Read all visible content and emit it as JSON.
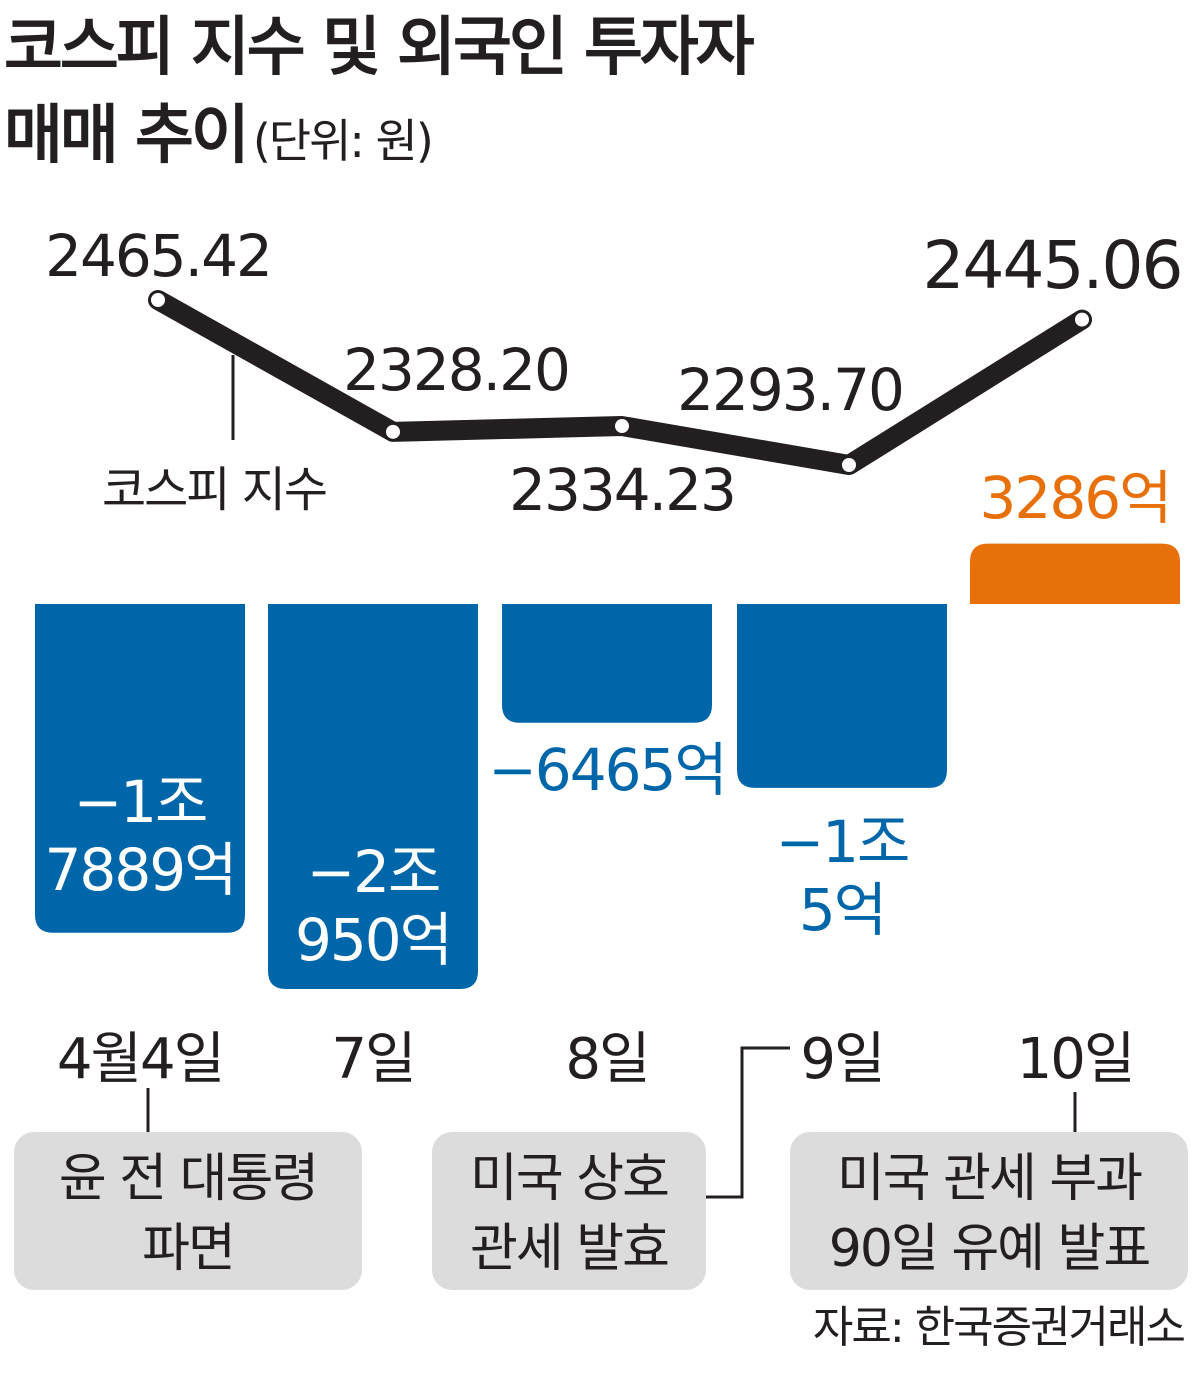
{
  "title_line1": "코스피 지수 및 외국인 투자자",
  "title_line2": "매매 추이",
  "unit_label": "(단위: 원)",
  "source": "자료: 한국증권거래소",
  "colors": {
    "index_line": "#231f20",
    "net_sell": "#0066aa",
    "net_buy": "#e8700a",
    "event_box": "#dcdcdc",
    "text": "#231f20"
  },
  "chart_data": {
    "type": "bar",
    "categories": [
      "4월4일",
      "7일",
      "8일",
      "9일",
      "10일"
    ],
    "series": [
      {
        "name": "코스피 지수",
        "type": "line",
        "values": [
          2465.42,
          2328.2,
          2334.23,
          2293.7,
          2445.06
        ],
        "labels": [
          "2465.42",
          "2328.20",
          "2334.23",
          "2293.70",
          "2445.06"
        ]
      },
      {
        "name": "",
        "type": "bar",
        "values": [
          -17889,
          -20950,
          -6465,
          -10005,
          3286
        ],
        "labels": [
          [
            "−1조",
            "7889억"
          ],
          [
            "−2조",
            "950억"
          ],
          [
            "−6465억"
          ],
          [
            "−1조",
            "5억"
          ],
          [
            "3286억"
          ]
        ]
      }
    ],
    "line_series_label": "코스피 지수",
    "annotations": [
      {
        "category": "4월4일",
        "lines": [
          "윤 전 대통령",
          "파면"
        ]
      },
      {
        "category": "9일",
        "lines": [
          "미국 상호",
          "관세 발효"
        ]
      },
      {
        "category": "10일",
        "lines": [
          "미국 관세 부과",
          "90일 유예 발표"
        ]
      }
    ],
    "title": "코스피 지수 및 외국인 투자자 매매 추이",
    "ylabel": "",
    "xlabel": "",
    "grid": false,
    "legend": "none"
  }
}
